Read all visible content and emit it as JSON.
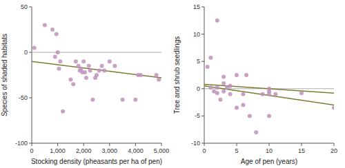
{
  "chart_data": [
    {
      "type": "scatter",
      "x_label": "Stocking density (pheasants per ha of pen)",
      "y_label": "Species of shaded habitats",
      "xlim": [
        0,
        5000
      ],
      "ylim": [
        -100,
        50
      ],
      "xticks": [
        0,
        {
          "value": 1000,
          "label": "1,000"
        },
        {
          "value": 2000,
          "label": "2,000"
        },
        {
          "value": 3000,
          "label": "3,000"
        },
        {
          "value": 4000,
          "label": "4,000"
        },
        {
          "value": 5000,
          "label": "5,000"
        }
      ],
      "yticks": [
        -100,
        -50,
        0,
        50
      ],
      "grid": false,
      "hlines": [
        {
          "value": 0,
          "color": "#aaaaaa"
        }
      ],
      "series": [
        {
          "type": "line",
          "color": "#7a7a30",
          "x": [
            0,
            5000
          ],
          "values": [
            -10,
            -28
          ]
        },
        {
          "type": "scatter",
          "color": "#c090bb",
          "x": [
            100,
            500,
            800,
            900,
            950,
            1000,
            1050,
            1100,
            1200,
            1500,
            1600,
            1700,
            1800,
            1850,
            1900,
            1950,
            2000,
            2050,
            2100,
            2200,
            2250,
            2350,
            2450,
            2500,
            2600,
            2700,
            2800,
            3000,
            3200,
            3500,
            4000,
            4100,
            4200,
            4800,
            4900
          ],
          "values": [
            5,
            30,
            25,
            -5,
            20,
            0,
            -18,
            -10,
            -65,
            -30,
            -35,
            -10,
            -15,
            -20,
            -18,
            -22,
            -10,
            -22,
            -28,
            -15,
            -20,
            -52,
            -28,
            -25,
            -20,
            -15,
            -20,
            -10,
            -15,
            -52,
            -52,
            -25,
            -25,
            -25,
            -30
          ]
        }
      ]
    },
    {
      "type": "scatter",
      "x_label": "Age of pen (years)",
      "y_label": "Tree and shrub seedlings",
      "xlim": [
        0,
        20
      ],
      "ylim": [
        -10,
        15
      ],
      "xticks": [
        0,
        5,
        10,
        15,
        20
      ],
      "yticks": [
        -10,
        -5,
        0,
        5,
        10,
        15
      ],
      "grid": false,
      "hlines": [
        {
          "value": 0,
          "color": "#aaaaaa"
        }
      ],
      "series": [
        {
          "type": "line",
          "color": "#7a7a30",
          "x": [
            0,
            20
          ],
          "values": [
            0.8,
            -0.8
          ]
        },
        {
          "type": "line",
          "color": "#7a7a30",
          "x": [
            0,
            20
          ],
          "values": [
            0.5,
            -3.0
          ]
        },
        {
          "type": "scatter",
          "color": "#c090bb",
          "x": [
            0.5,
            1,
            1,
            1.5,
            2,
            2,
            2,
            2.5,
            3,
            3,
            3,
            3.5,
            4,
            4,
            5,
            5,
            6,
            6,
            6.5,
            7,
            8,
            9,
            10,
            10,
            10,
            10,
            11,
            15,
            20
          ],
          "values": [
            4,
            0.2,
            5.7,
            -0.5,
            12.5,
            0.2,
            -0.8,
            -2,
            2.2,
            1,
            -0.5,
            0.2,
            0.5,
            -1,
            2.5,
            -3.5,
            -1,
            -3,
            2.5,
            -5,
            -8,
            -1,
            0,
            -1,
            -0.5,
            -5,
            -1,
            -0.8,
            -3.5
          ]
        }
      ]
    }
  ]
}
